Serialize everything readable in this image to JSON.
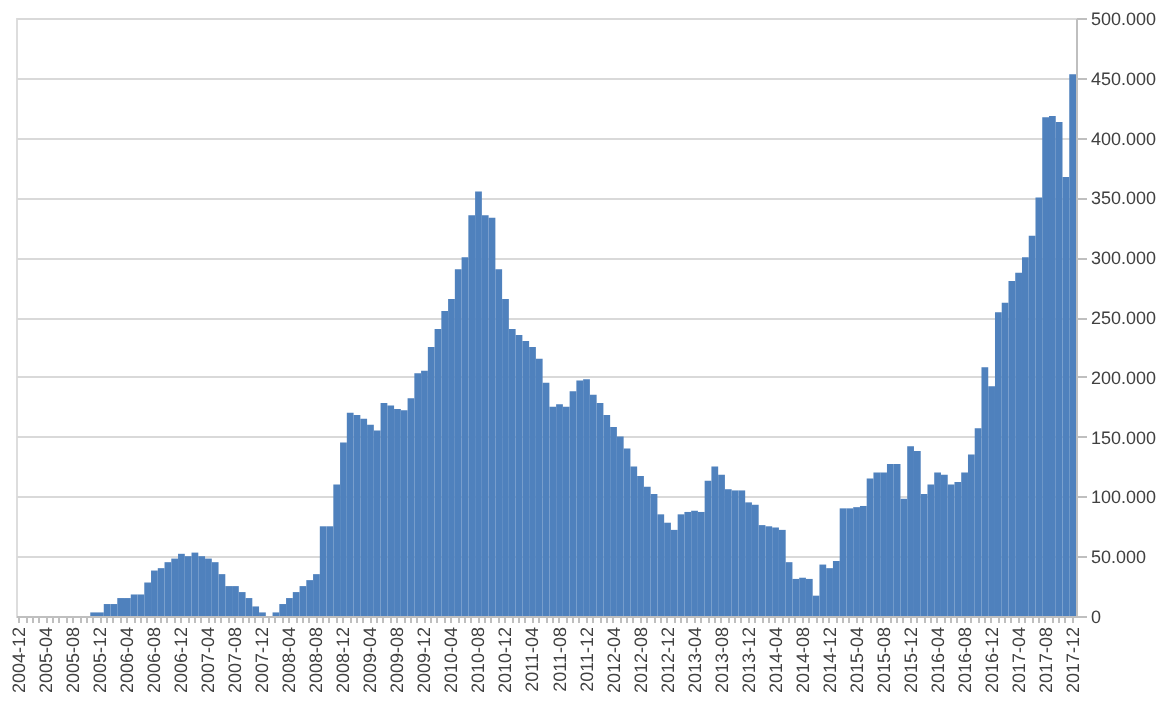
{
  "chart_data": {
    "type": "bar",
    "color": "#4f81bd",
    "grid": "y",
    "categories": [
      "2004-12",
      null,
      null,
      null,
      "2005-04",
      null,
      null,
      null,
      "2005-08",
      null,
      null,
      null,
      "2005-12",
      null,
      null,
      null,
      "2006-04",
      null,
      null,
      null,
      "2006-08",
      null,
      null,
      null,
      "2006-12",
      null,
      null,
      null,
      "2007-04",
      null,
      null,
      null,
      "2007-08",
      null,
      null,
      null,
      "2007-12",
      null,
      null,
      null,
      "2008-04",
      null,
      null,
      null,
      "2008-08",
      null,
      null,
      null,
      "2008-12",
      null,
      null,
      null,
      "2009-04",
      null,
      null,
      null,
      "2009-08",
      null,
      null,
      null,
      "2009-12",
      null,
      null,
      null,
      "2010-04",
      null,
      null,
      null,
      "2010-08",
      null,
      null,
      null,
      "2010-12",
      null,
      null,
      null,
      "2011-04",
      null,
      null,
      null,
      "2011-08",
      null,
      null,
      null,
      "2011-12",
      null,
      null,
      null,
      "2012-04",
      null,
      null,
      null,
      "2012-08",
      null,
      null,
      null,
      "2012-12",
      null,
      null,
      null,
      "2013-04",
      null,
      null,
      null,
      "2013-08",
      null,
      null,
      null,
      "2013-12",
      null,
      null,
      null,
      "2014-04",
      null,
      null,
      null,
      "2014-08",
      null,
      null,
      null,
      "2014-12",
      null,
      null,
      null,
      "2015-04",
      null,
      null,
      null,
      "2015-08",
      null,
      null,
      null,
      "2015-12",
      null,
      null,
      null,
      "2016-04",
      null,
      null,
      null,
      "2016-08",
      null,
      null,
      null,
      "2016-12",
      null,
      null,
      null,
      "2017-04",
      null,
      null,
      null,
      "2017-08",
      null,
      null,
      null,
      "2017-12"
    ],
    "values": [
      0,
      0,
      0,
      0,
      0,
      0,
      0,
      0,
      0,
      0,
      0,
      3000,
      3000,
      10000,
      10000,
      15000,
      15000,
      18000,
      18000,
      28000,
      38000,
      40000,
      45000,
      48000,
      52000,
      50000,
      53000,
      50000,
      48000,
      45000,
      35000,
      25000,
      25000,
      20000,
      15000,
      8000,
      3000,
      0,
      3000,
      10000,
      15000,
      20000,
      25000,
      30000,
      35000,
      75000,
      75000,
      110000,
      145000,
      170000,
      168000,
      165000,
      160000,
      155000,
      178000,
      176000,
      173000,
      172000,
      182000,
      203000,
      205000,
      225000,
      240000,
      255000,
      265000,
      290000,
      300000,
      335000,
      355000,
      335000,
      333000,
      290000,
      265000,
      240000,
      235000,
      230000,
      225000,
      215000,
      195000,
      175000,
      177000,
      175000,
      188000,
      197000,
      198000,
      185000,
      178000,
      168000,
      158000,
      150000,
      140000,
      125000,
      117000,
      108000,
      102000,
      85000,
      78000,
      72000,
      85000,
      87000,
      88000,
      87000,
      113000,
      125000,
      118000,
      106000,
      105000,
      105000,
      95000,
      93000,
      76000,
      75000,
      74000,
      72000,
      45000,
      31000,
      32000,
      31000,
      17000,
      43000,
      40000,
      46000,
      90000,
      90000,
      91000,
      92000,
      115000,
      120000,
      120000,
      127000,
      127000,
      98000,
      142000,
      138000,
      102000,
      110000,
      120000,
      118000,
      110000,
      112000,
      120000,
      135000,
      157000,
      208000,
      192000,
      254000,
      262000,
      280000,
      287000,
      300000,
      318000,
      350000,
      417000,
      418000,
      413000,
      367000,
      453000
    ],
    "ylim": [
      0,
      500000
    ],
    "yticks": [
      0,
      {
        "value": 50000,
        "label": "50.000"
      },
      {
        "value": 100000,
        "label": "100.000"
      },
      {
        "value": 150000,
        "label": "150.000"
      },
      {
        "value": 200000,
        "label": "200.000"
      },
      {
        "value": 250000,
        "label": "250.000"
      },
      {
        "value": 300000,
        "label": "300.000"
      },
      {
        "value": 350000,
        "label": "350.000"
      },
      {
        "value": 400000,
        "label": "400.000"
      },
      {
        "value": 450000,
        "label": "450.000"
      },
      {
        "value": 500000,
        "label": "500.000"
      }
    ]
  }
}
